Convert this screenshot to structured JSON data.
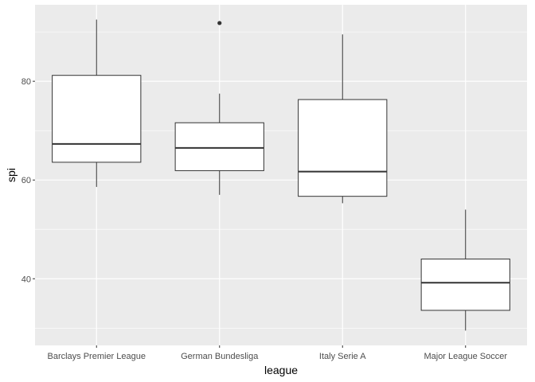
{
  "chart_data": {
    "type": "boxplot",
    "xlabel": "league",
    "ylabel": "spi",
    "ylim": [
      26.5,
      95.5
    ],
    "yticks": [
      40,
      60,
      80
    ],
    "grid": true,
    "legend": "none",
    "colors": {
      "panel": "#ebebeb",
      "grid": "#ffffff",
      "box_fill": "#ffffff",
      "box_stroke": "#333333",
      "tick_text": "#4d4d4d",
      "axis_title": "#000000"
    },
    "categories": [
      "Barclays Premier League",
      "German Bundesliga",
      "Italy Serie A",
      "Major League Soccer"
    ],
    "boxes": [
      {
        "category": "Barclays Premier League",
        "whisker_low": 58.6,
        "q1": 63.6,
        "median": 67.3,
        "q3": 81.2,
        "whisker_high": 92.5,
        "outliers": []
      },
      {
        "category": "German Bundesliga",
        "whisker_low": 57.0,
        "q1": 61.9,
        "median": 66.5,
        "q3": 71.6,
        "whisker_high": 77.5,
        "outliers": [
          91.8
        ]
      },
      {
        "category": "Italy Serie A",
        "whisker_low": 55.3,
        "q1": 56.7,
        "median": 61.7,
        "q3": 76.3,
        "whisker_high": 89.5,
        "outliers": []
      },
      {
        "category": "Major League Soccer",
        "whisker_low": 29.5,
        "q1": 33.6,
        "median": 39.2,
        "q3": 44.0,
        "whisker_high": 54.0,
        "outliers": []
      }
    ]
  }
}
